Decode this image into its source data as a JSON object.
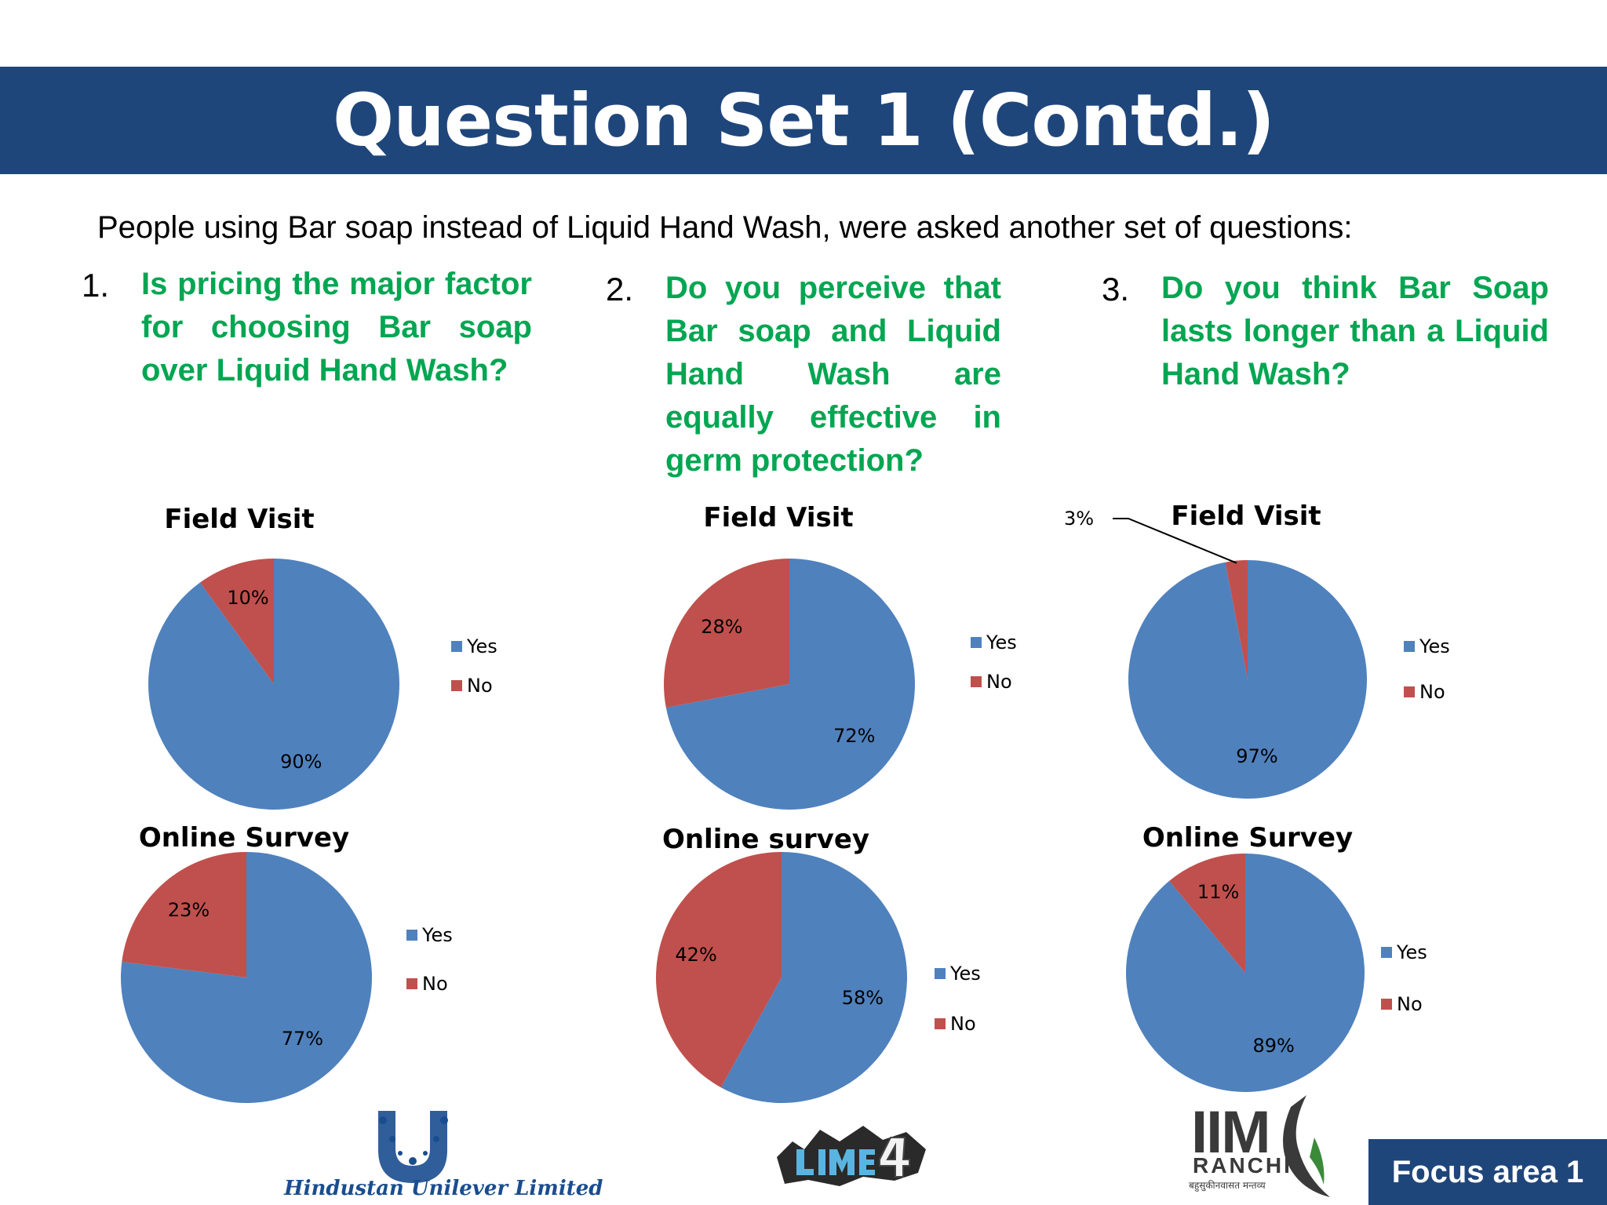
{
  "slide": {
    "title": "Question Set 1 (Contd.)",
    "intro": "People using Bar soap instead of Liquid Hand Wash, were asked another set of questions:",
    "footer_badge": "Focus area 1",
    "logos": {
      "hul": "Hindustan Unilever Limited",
      "iim_main": "IIM",
      "iim_sub": "RANCHI",
      "iim_tagline": "बहुसुकीनवासत मन्तव्य"
    }
  },
  "questions": [
    {
      "number": "1.",
      "text": "Is pricing the major factor for choosing Bar soap over Liquid Hand Wash?"
    },
    {
      "number": "2.",
      "text": "Do you perceive that Bar soap and Liquid Hand Wash are equally effective in germ protection?"
    },
    {
      "number": "3.",
      "text": "Do you think Bar Soap lasts longer than a Liquid Hand Wash?"
    }
  ],
  "colors": {
    "yes": "#4f81bd",
    "no": "#c0504d",
    "banner": "#1f467b",
    "question": "#00a651"
  },
  "chart_data": [
    {
      "type": "pie",
      "title": "Field Visit",
      "categories": [
        "Yes",
        "No"
      ],
      "values": [
        90,
        10
      ],
      "labels": [
        "90%",
        "10%"
      ]
    },
    {
      "type": "pie",
      "title": "Field Visit",
      "categories": [
        "Yes",
        "No"
      ],
      "values": [
        72,
        28
      ],
      "labels": [
        "72%",
        "28%"
      ]
    },
    {
      "type": "pie",
      "title": "Field Visit",
      "categories": [
        "Yes",
        "No"
      ],
      "values": [
        97,
        3
      ],
      "labels": [
        "97%",
        "3%"
      ]
    },
    {
      "type": "pie",
      "title": "Online Survey",
      "categories": [
        "Yes",
        "No"
      ],
      "values": [
        77,
        23
      ],
      "labels": [
        "77%",
        "23%"
      ]
    },
    {
      "type": "pie",
      "title": "Online survey",
      "categories": [
        "Yes",
        "No"
      ],
      "values": [
        58,
        42
      ],
      "labels": [
        "58%",
        "42%"
      ]
    },
    {
      "type": "pie",
      "title": "Online Survey",
      "categories": [
        "Yes",
        "No"
      ],
      "values": [
        89,
        11
      ],
      "labels": [
        "89%",
        "11%"
      ]
    }
  ]
}
